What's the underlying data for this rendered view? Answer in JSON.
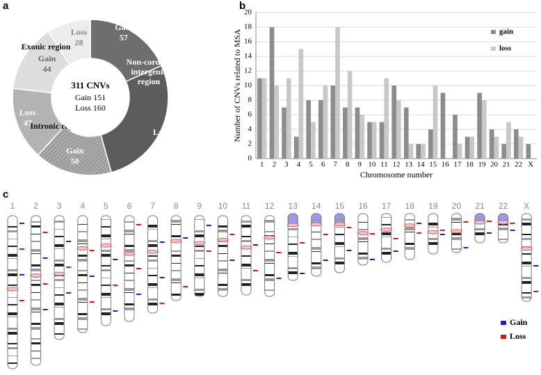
{
  "chart_data": [
    {
      "type": "donut",
      "panel": "a",
      "categories": [
        "Gain",
        "Loss",
        "Gain",
        "Loss",
        "Gain",
        "Loss"
      ],
      "values": [
        57,
        85,
        50,
        47,
        44,
        28
      ],
      "colors": [
        "#6e6e6e",
        "#5c5c5c",
        "url(#hatchMid)",
        "#b3b3b3",
        "url(#hatchLight)",
        "#ececec"
      ],
      "label_colors": [
        "#ffffff",
        "#ffffff",
        "#ffffff",
        "#ffffff",
        "#666666",
        "#888888"
      ],
      "regions": [
        "Non-cording intergenic region",
        "Intronic region",
        "Exonic region"
      ],
      "center_title": "311 CNVs",
      "center_lines": [
        "Gain 151",
        "Loss 160"
      ]
    },
    {
      "type": "bar",
      "panel": "b",
      "categories": [
        "1",
        "2",
        "3",
        "4",
        "5",
        "6",
        "7",
        "8",
        "9",
        "10",
        "11",
        "12",
        "13",
        "14",
        "15",
        "16",
        "17",
        "18",
        "19",
        "20",
        "21",
        "22",
        "X"
      ],
      "series": [
        {
          "name": "gain",
          "color": "#8c8c8c",
          "values": [
            11,
            18,
            7,
            3,
            8,
            8,
            10,
            7,
            7,
            5,
            5,
            10,
            7,
            2,
            4,
            9,
            6,
            3,
            9,
            4,
            2,
            4,
            2
          ]
        },
        {
          "name": "loss",
          "color": "#c8c8c8",
          "values": [
            11,
            10,
            11,
            15,
            5,
            10,
            18,
            12,
            6,
            5,
            11,
            8,
            2,
            2,
            10,
            0,
            2,
            3,
            8,
            3,
            5,
            3,
            0
          ]
        }
      ],
      "ylim": [
        0,
        20
      ],
      "yticks": [
        0,
        2,
        4,
        6,
        8,
        10,
        12,
        14,
        16,
        18,
        20
      ],
      "grid": true,
      "xlabel": "Chromosome number",
      "ylabel": "Number of CNVs related to MSA"
    },
    {
      "type": "ideogram",
      "panel": "c",
      "categories": [
        "1",
        "2",
        "3",
        "4",
        "5",
        "6",
        "7",
        "8",
        "9",
        "10",
        "11",
        "12",
        "13",
        "14",
        "15",
        "16",
        "17",
        "18",
        "19",
        "20",
        "21",
        "22",
        "X"
      ],
      "series": [
        {
          "name": "Gain",
          "color": "#1a1ad0"
        },
        {
          "name": "Loss",
          "color": "#cc1a1a"
        }
      ]
    }
  ]
}
